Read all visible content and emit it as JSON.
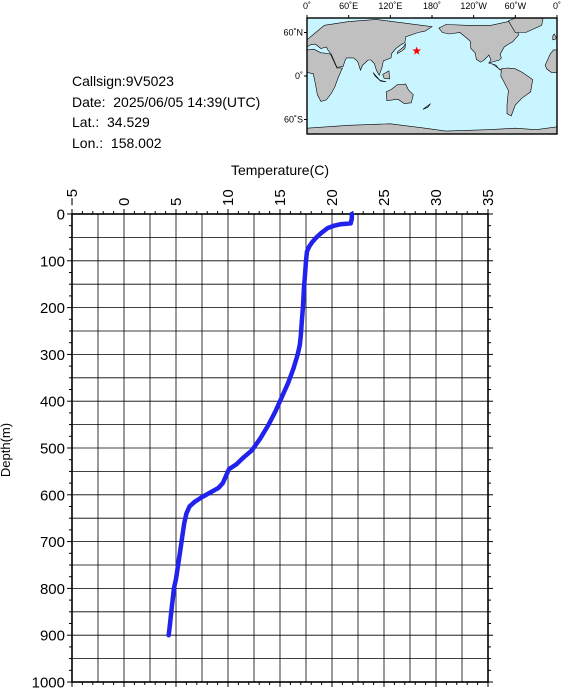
{
  "info": {
    "callsign": "Callsign:9V5023",
    "date": "Date:  2025/06/05 14:39(UTC)",
    "lat": "Lat.:  34.529",
    "lon": "Lon.:  158.002"
  },
  "map": {
    "top_tick_labels": [
      "0˚",
      "60˚E",
      "120˚E",
      "180˚",
      "120˚W",
      "60˚W",
      "0˚"
    ],
    "left_tick_labels": [
      "60˚N",
      "0˚",
      "60˚S"
    ],
    "ocean_color": "#c8f5ff",
    "land_color": "#c0c0c0",
    "marker_color": "#ff0000",
    "marker": {
      "lat": 34.529,
      "lon": 158.002
    }
  },
  "chart_data": {
    "type": "line",
    "xlabel": "Temperature(C)",
    "ylabel": "Depth(m)",
    "xlim": [
      -5,
      35
    ],
    "ylim": [
      1000,
      0
    ],
    "x_ticks": [
      -5,
      0,
      5,
      10,
      15,
      20,
      25,
      30,
      35
    ],
    "y_ticks": [
      0,
      100,
      200,
      300,
      400,
      500,
      600,
      700,
      800,
      900,
      1000
    ],
    "grid": true,
    "line_color": "#2222ee",
    "series": [
      {
        "temperature": [
          21.9,
          21.9,
          21.8,
          20.8,
          20.2,
          19.6,
          19.0,
          18.5,
          18.1,
          17.8,
          17.6,
          17.5,
          17.4,
          17.3,
          17.2,
          17.1,
          17.0,
          16.9,
          16.7,
          16.3,
          15.8,
          15.2,
          14.6,
          13.9,
          13.1,
          12.3,
          11.5,
          10.8,
          10.1,
          9.8,
          9.5,
          9.1,
          8.3,
          7.5,
          6.8,
          6.3,
          6.0,
          5.8,
          5.6,
          5.4,
          5.2,
          5.0,
          4.8,
          4.7,
          4.6,
          4.5,
          4.4,
          4.3
        ],
        "depth": [
          0,
          10,
          20,
          22,
          25,
          30,
          40,
          50,
          60,
          70,
          80,
          100,
          130,
          160,
          200,
          230,
          260,
          280,
          300,
          330,
          360,
          390,
          420,
          450,
          480,
          505,
          520,
          535,
          545,
          560,
          575,
          585,
          595,
          605,
          615,
          625,
          640,
          660,
          690,
          720,
          750,
          780,
          800,
          820,
          840,
          860,
          880,
          900
        ]
      }
    ]
  }
}
